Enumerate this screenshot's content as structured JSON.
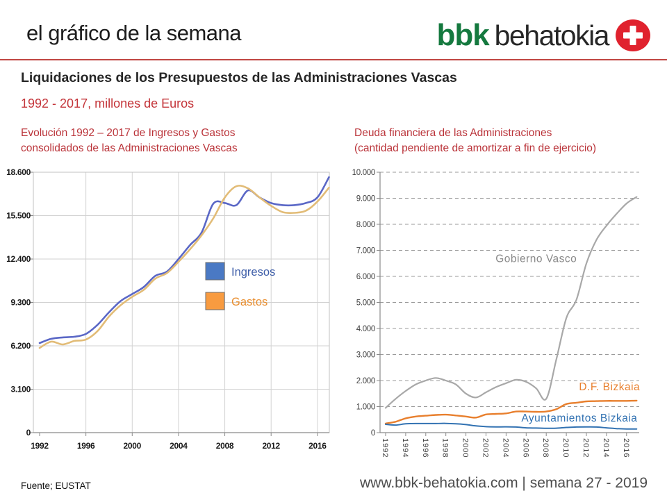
{
  "header": {
    "page_title": "el gráfico de la semana",
    "logo_bbk": "bbk",
    "logo_behatokia": "behatokia",
    "logo_badge_icon": "plus-icon",
    "logo_green": "#15793F",
    "badge_red": "#E0222E",
    "accent_red": "#C14743"
  },
  "main": {
    "title": "Liquidaciones de los Presupuestos de las Administraciones Vascas",
    "subtitle": "1992 - 2017, millones de Euros"
  },
  "footer": {
    "source": "Fuente; EUSTAT",
    "site": "www.bbk-behatokia.com | semana 27 - 2019"
  },
  "chart_data": [
    {
      "id": "ingresos-gastos",
      "type": "line",
      "title_lines": [
        "Evolución 1992 – 2017 de Ingresos y Gastos",
        "consolidados  de las Administraciones Vascas"
      ],
      "x_years": [
        1992,
        1993,
        1994,
        1995,
        1996,
        1997,
        1998,
        1999,
        2000,
        2001,
        2002,
        2003,
        2004,
        2005,
        2006,
        2007,
        2008,
        2009,
        2010,
        2011,
        2012,
        2013,
        2014,
        2015,
        2016,
        2017
      ],
      "ylim": [
        0,
        18600
      ],
      "ytick_values": [
        0,
        3100,
        6200,
        9300,
        12400,
        15500,
        18600
      ],
      "ytick_labels": [
        "0",
        "3.100",
        "6.200",
        "9.300",
        "12.400",
        "15.500",
        "18.600"
      ],
      "xtick_years": [
        1992,
        1996,
        2000,
        2004,
        2008,
        2012,
        2016
      ],
      "grid": "solid",
      "legend_position": "inside-center",
      "series": [
        {
          "name": "Ingresos",
          "line_color": "#5A67C6",
          "swatch_color": "#4A79C4",
          "label_color": "#3D5DA8",
          "line_width": 2.6,
          "values": [
            6400,
            6700,
            6800,
            6850,
            7050,
            7700,
            8600,
            9400,
            9900,
            10400,
            11200,
            11500,
            12400,
            13400,
            14300,
            16350,
            16400,
            16250,
            17300,
            16800,
            16400,
            16250,
            16250,
            16400,
            16800,
            18250
          ]
        },
        {
          "name": "Gastos",
          "line_color": "#E2BC77",
          "swatch_color": "#F89B40",
          "label_color": "#E98E2F",
          "line_width": 2.6,
          "values": [
            6050,
            6500,
            6300,
            6550,
            6650,
            7250,
            8300,
            9100,
            9700,
            10200,
            11000,
            11400,
            12200,
            13100,
            14100,
            15300,
            16800,
            17600,
            17450,
            16800,
            16200,
            15750,
            15700,
            15850,
            16500,
            17500
          ]
        }
      ]
    },
    {
      "id": "deuda",
      "type": "line",
      "title_lines": [
        "Deuda financiera de las Administraciones",
        "(cantidad pendiente de amortizar a fin de ejercicio)"
      ],
      "x_years": [
        1992,
        1993,
        1994,
        1995,
        1996,
        1997,
        1998,
        1999,
        2000,
        2001,
        2002,
        2003,
        2004,
        2005,
        2006,
        2007,
        2008,
        2009,
        2010,
        2011,
        2012,
        2013,
        2014,
        2015,
        2016,
        2017
      ],
      "ylim": [
        0,
        10000
      ],
      "ytick_values": [
        0,
        1000,
        2000,
        3000,
        4000,
        5000,
        6000,
        7000,
        8000,
        9000,
        10000
      ],
      "ytick_labels": [
        "0",
        "1.000",
        "2.000",
        "3.000",
        "4.000",
        "5.000",
        "6.000",
        "7.000",
        "8.000",
        "9.000",
        "10.000"
      ],
      "xtick_years": [
        1992,
        1994,
        1996,
        1998,
        2000,
        2002,
        2004,
        2006,
        2008,
        2010,
        2012,
        2014,
        2016
      ],
      "grid": "dashed-horizontal",
      "legend_position": "none",
      "series": [
        {
          "name": "Gobierno Vasco",
          "line_color": "#A8A8A8",
          "line_width": 2.2,
          "values": [
            950,
            1300,
            1600,
            1850,
            2000,
            2100,
            2000,
            1850,
            1500,
            1350,
            1550,
            1750,
            1900,
            2030,
            1950,
            1700,
            1300,
            2800,
            4400,
            5100,
            6500,
            7400,
            7950,
            8400,
            8800,
            9050
          ]
        },
        {
          "name": "D.F. Bizkaia",
          "line_color": "#E87F2D",
          "line_width": 2.4,
          "values": [
            350,
            420,
            550,
            620,
            650,
            680,
            690,
            660,
            620,
            580,
            700,
            720,
            740,
            810,
            810,
            800,
            810,
            900,
            1100,
            1150,
            1200,
            1210,
            1220,
            1220,
            1220,
            1230
          ]
        },
        {
          "name": "Ayuntamientos Bizkaia",
          "line_color": "#3272B2",
          "line_width": 2.0,
          "values": [
            320,
            290,
            340,
            350,
            350,
            350,
            355,
            340,
            310,
            260,
            230,
            220,
            225,
            215,
            185,
            175,
            165,
            170,
            200,
            215,
            220,
            215,
            185,
            155,
            140,
            140
          ]
        }
      ],
      "annotations": [
        {
          "text": "Gobierno Vasco",
          "year": 2007,
          "value": 6550,
          "color": "#8A8A8A"
        },
        {
          "text": "D.F. Bizkaia",
          "year": 2014.3,
          "value": 1630,
          "color": "#E87F2D"
        },
        {
          "text": "Ayuntamientos Bizkaia",
          "year": 2011.3,
          "value": 430,
          "color": "#3272B2"
        }
      ]
    }
  ]
}
